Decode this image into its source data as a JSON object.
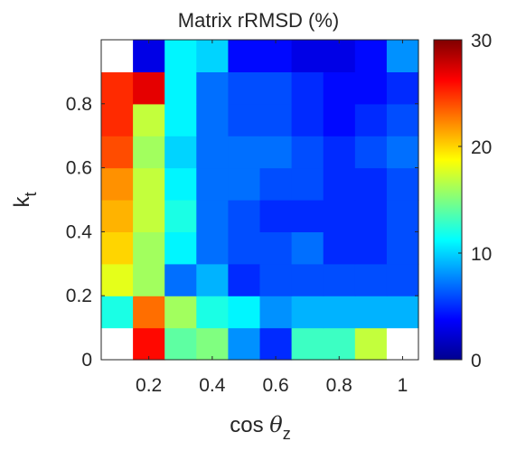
{
  "chart_data": {
    "type": "heatmap",
    "title": "Matrix rRMSD (%)",
    "xlabel": {
      "base": "cos ",
      "symbol": "θ",
      "subscript": "z"
    },
    "ylabel": {
      "base": "k",
      "subscript": "t"
    },
    "x_centers": [
      0.1,
      0.2,
      0.3,
      0.4,
      0.5,
      0.6,
      0.7,
      0.8,
      0.9,
      1.0
    ],
    "y_centers": [
      0.05,
      0.15,
      0.25,
      0.35,
      0.45,
      0.55,
      0.65,
      0.75,
      0.85,
      0.95
    ],
    "xlim": [
      0.05,
      1.05
    ],
    "ylim": [
      0.0,
      1.0
    ],
    "x_ticks": [
      0.2,
      0.4,
      0.6,
      0.8,
      1.0
    ],
    "x_tick_labels": [
      "0.2",
      "0.4",
      "0.6",
      "0.8",
      "1"
    ],
    "y_ticks": [
      0.0,
      0.2,
      0.4,
      0.6,
      0.8
    ],
    "y_tick_labels": [
      "0",
      "0.2",
      "0.4",
      "0.6",
      "0.8"
    ],
    "colorbar": {
      "colormap": "jet",
      "clim": [
        0,
        30
      ],
      "ticks": [
        0,
        10,
        20,
        30
      ],
      "tick_labels": [
        "0",
        "10",
        "20",
        "30"
      ]
    },
    "values": [
      [
        null,
        26,
        14,
        15,
        8,
        5,
        13,
        13,
        17,
        null
      ],
      [
        12,
        23,
        16,
        12,
        11,
        8,
        9,
        9,
        9,
        9
      ],
      [
        18,
        16,
        7,
        9,
        5,
        6,
        6,
        6,
        6,
        6
      ],
      [
        20,
        16,
        11,
        7,
        6,
        6,
        7,
        5,
        5,
        6
      ],
      [
        21,
        17,
        12,
        7,
        6,
        5,
        5,
        5,
        5,
        6
      ],
      [
        22,
        17,
        11,
        7,
        7,
        6,
        6,
        5,
        5,
        6
      ],
      [
        24,
        16,
        10,
        7,
        7,
        7,
        6,
        5,
        6,
        7
      ],
      [
        25,
        17,
        11,
        7,
        6,
        6,
        5,
        4,
        5,
        6
      ],
      [
        25,
        27,
        11,
        7,
        6,
        6,
        5,
        4,
        4,
        5
      ],
      [
        null,
        3,
        11,
        10,
        4,
        4,
        3,
        3,
        4,
        8
      ]
    ]
  }
}
